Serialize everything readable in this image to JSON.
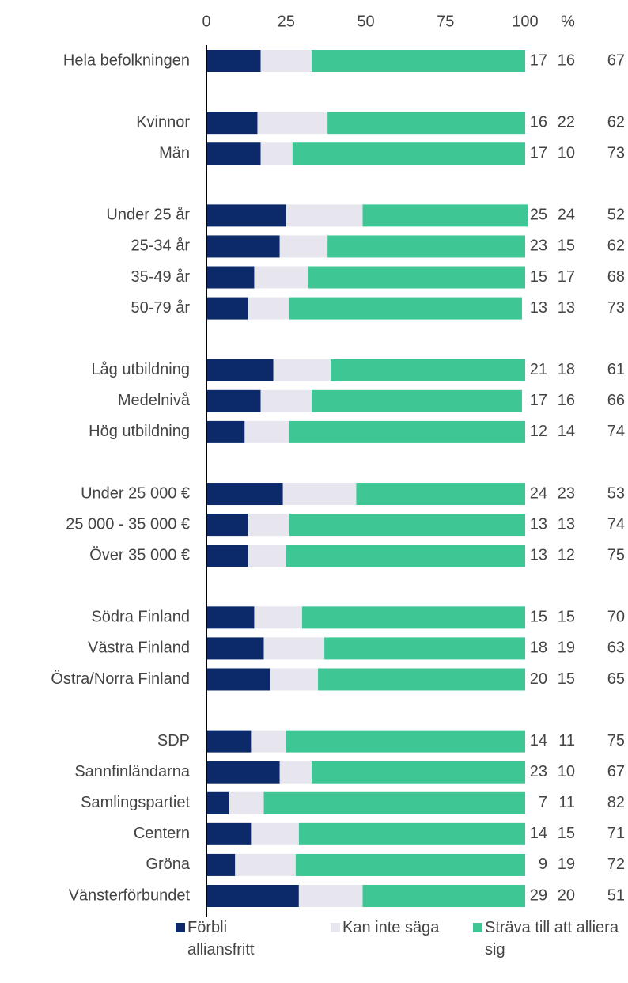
{
  "chart_data": {
    "type": "stacked_barh",
    "unit_label": "%",
    "categories": [
      "Hela befolkningen",
      null,
      "Kvinnor",
      "Män",
      null,
      "Under 25 år",
      "25-34 år",
      "35-49 år",
      "50-79 år",
      null,
      "Låg utbildning",
      "Medelnivå",
      "Hög utbildning",
      null,
      "Under 25 000 €",
      "25 000 - 35 000 €",
      "Över 35 000 €",
      null,
      "Södra Finland",
      "Västra Finland",
      "Östra/Norra Finland",
      null,
      "SDP",
      "Sannfinländarna",
      "Samlingspartiet",
      "Centern",
      "Gröna",
      "Vänsterförbundet"
    ],
    "series": [
      {
        "name": "Förbli alliansfritt",
        "color": "#0c2a6a",
        "values": [
          17,
          null,
          16,
          17,
          null,
          25,
          23,
          15,
          13,
          null,
          21,
          17,
          12,
          null,
          24,
          13,
          13,
          null,
          15,
          18,
          20,
          null,
          14,
          23,
          7,
          14,
          9,
          29
        ]
      },
      {
        "name": "Kan inte säga",
        "color": "#e7e6ef",
        "values": [
          16,
          null,
          22,
          10,
          null,
          24,
          15,
          17,
          13,
          null,
          18,
          16,
          14,
          null,
          23,
          13,
          12,
          null,
          15,
          19,
          15,
          null,
          11,
          10,
          11,
          15,
          19,
          20
        ]
      },
      {
        "name": "Sträva till att alliera sig",
        "color": "#3ec795",
        "values": [
          67,
          null,
          62,
          73,
          null,
          52,
          62,
          68,
          73,
          null,
          61,
          66,
          74,
          null,
          53,
          74,
          75,
          null,
          70,
          63,
          65,
          null,
          75,
          67,
          82,
          71,
          72,
          51
        ]
      }
    ],
    "xlim": [
      0,
      100
    ],
    "xticks": [
      0,
      25,
      50,
      75,
      100
    ]
  }
}
